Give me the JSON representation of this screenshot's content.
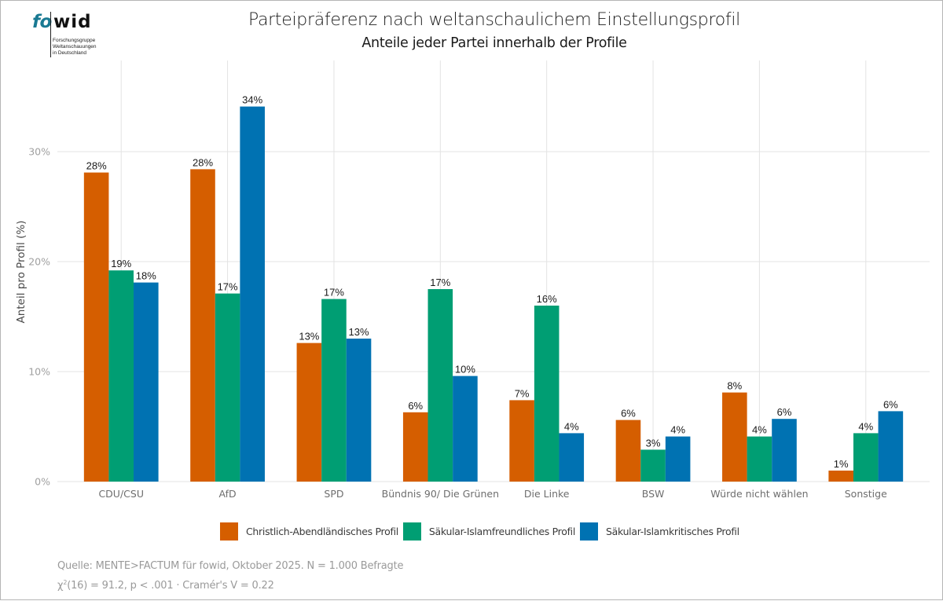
{
  "logo": {
    "brand_part1": "fo",
    "brand_part2": "wid",
    "subtitle_lines": "Forschungsgruppe\nWeltanschauungen\nin Deutschland"
  },
  "header": {
    "title": "Parteipräferenz nach weltanschaulichem Einstellungsprofil",
    "subtitle": "Anteile jeder Partei innerhalb der Profile"
  },
  "colors": {
    "christlich": "#D55E00",
    "islamfreundlich": "#009E73",
    "islamkritisch": "#0072B2"
  },
  "chart_data": {
    "type": "bar",
    "title": "Parteipräferenz nach weltanschaulichem Einstellungsprofil",
    "subtitle": "Anteile jeder Partei innerhalb der Profile",
    "xlabel": "",
    "ylabel": "Anteil pro Profil (%)",
    "ylim": [
      0,
      36.3
    ],
    "yticks": [
      0,
      10,
      20,
      30
    ],
    "ytick_labels": [
      "0%",
      "10%",
      "20%",
      "30%"
    ],
    "grid": true,
    "legend_position": "bottom",
    "categories": [
      "CDU/CSU",
      "AfD",
      "SPD",
      "Bündnis 90/ Die Grünen",
      "Die Linke",
      "BSW",
      "Würde nicht wählen",
      "Sonstige"
    ],
    "series": [
      {
        "name": "Christlich-Abendländisches Profil",
        "color": "#D55E00",
        "values": [
          28.1,
          28.4,
          12.6,
          6.3,
          7.4,
          5.6,
          8.1,
          1.0
        ],
        "labels": [
          "28%",
          "28%",
          "13%",
          "6%",
          "7%",
          "6%",
          "8%",
          "1%"
        ]
      },
      {
        "name": "Säkular-Islamfreundliches Profil",
        "color": "#009E73",
        "values": [
          19.2,
          17.1,
          16.6,
          17.5,
          16.0,
          2.9,
          4.1,
          4.4
        ],
        "labels": [
          "19%",
          "17%",
          "17%",
          "17%",
          "16%",
          "3%",
          "4%",
          "4%"
        ]
      },
      {
        "name": "Säkular-Islamkritisches Profil",
        "color": "#0072B2",
        "values": [
          18.1,
          34.1,
          13.0,
          9.6,
          4.4,
          4.1,
          5.7,
          6.4
        ],
        "labels": [
          "18%",
          "34%",
          "13%",
          "10%",
          "4%",
          "4%",
          "6%",
          "6%"
        ]
      }
    ]
  },
  "caption": {
    "source": "Quelle: MENTE>FACTUM für fowid, Oktober 2025. N = 1.000 Befragte",
    "stats_prefix": "χ",
    "stats_sup": "2",
    "stats_rest": "(16) = 91.2, p < .001 · Cramér's V = 0.22"
  }
}
